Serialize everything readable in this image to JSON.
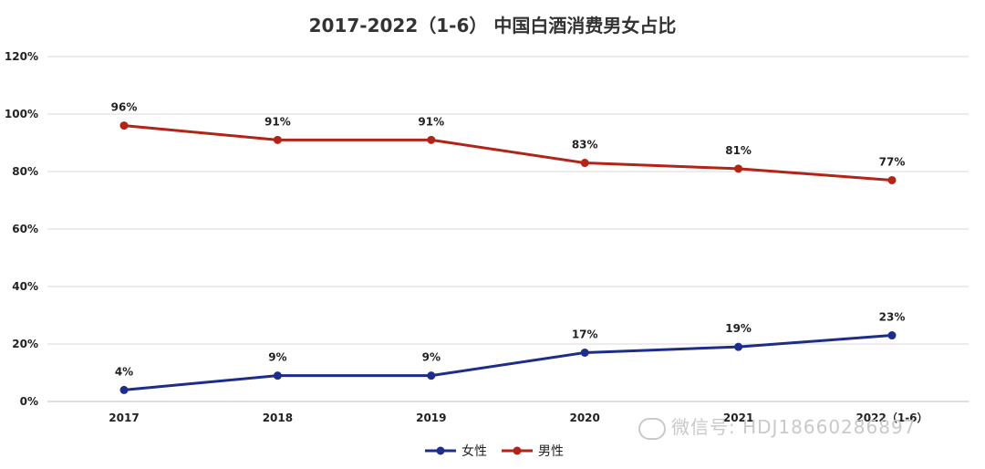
{
  "chart_data": {
    "type": "line",
    "title": "2017-2022（1-6） 中国白酒消费男女占比",
    "categories": [
      "2017",
      "2018",
      "2019",
      "2020",
      "2021",
      "2022（1-6）"
    ],
    "yticks": [
      "0%",
      "20%",
      "40%",
      "60%",
      "80%",
      "100%",
      "120%"
    ],
    "ylim": [
      0,
      120
    ],
    "grid": true,
    "legend_position": "bottom",
    "series": [
      {
        "name": "女性",
        "color": "#1f2d8a",
        "values": [
          4,
          9,
          9,
          17,
          19,
          23
        ],
        "labels": [
          "4%",
          "9%",
          "9%",
          "17%",
          "19%",
          "23%"
        ]
      },
      {
        "name": "男性",
        "color": "#b22417",
        "values": [
          96,
          91,
          91,
          83,
          81,
          77
        ],
        "labels": [
          "96%",
          "91%",
          "91%",
          "83%",
          "81%",
          "77%"
        ]
      }
    ]
  },
  "watermark": {
    "text": "微信号: HDJ18660286897"
  }
}
